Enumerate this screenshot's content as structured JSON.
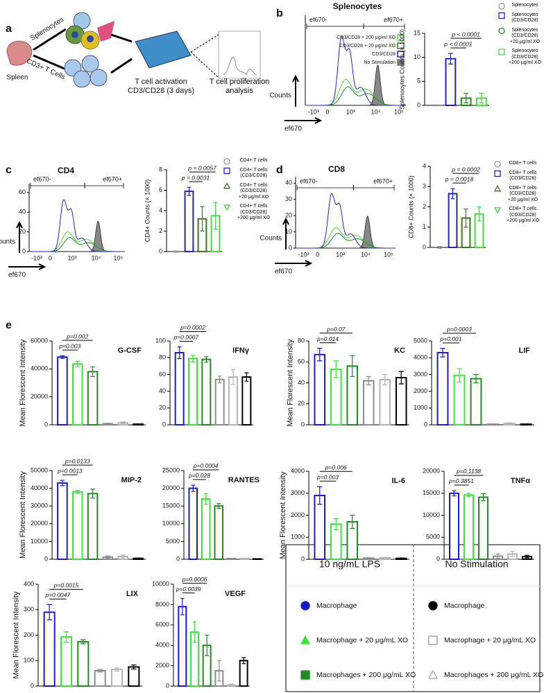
{
  "panels": [
    "a",
    "b",
    "c",
    "d",
    "e"
  ],
  "diagram": {
    "spleen": "Spleen",
    "splenocytes": "Splenocytes",
    "t_cells": "CD3+ T Cells",
    "activation": "T cell activation",
    "activation_detail": "CD3/CD28 (3 days)",
    "analysis": "T cell proliferation\nanalysis"
  },
  "histograms": [
    {
      "title": "Splenocytes",
      "gates": [
        "ef670-",
        "ef670+"
      ],
      "y_label": "Counts",
      "x_label": "ef670",
      "xtick_labels": [
        "-10³",
        "0",
        "10³",
        "10⁴",
        "10⁵"
      ],
      "legend": [
        {
          "name": "CD3/CD28 + 200 μg/ml XO",
          "color": "#44dd44",
          "filled": false
        },
        {
          "name": "CD3/CD28 + 20 μg/ml XO",
          "color": "#1e8c1e",
          "filled": false
        },
        {
          "name": "CD3/CD28",
          "color": "#2222cc",
          "filled": false
        },
        {
          "name": "No Stimulation",
          "color": "#777777",
          "filled": true
        }
      ]
    },
    {
      "title": "CD4",
      "gates": [
        "ef670-",
        "ef670+"
      ],
      "y_label": "Counts",
      "x_label": "ef670",
      "xtick_labels": [
        "-10³",
        "0",
        "10³",
        "10⁴",
        "10⁵"
      ],
      "ylim": [
        0,
        69
      ],
      "yticks": [
        0,
        20,
        40,
        60
      ]
    },
    {
      "title": "CD8",
      "gates": [
        "ef670-",
        "ef670+"
      ],
      "y_label": "Counts",
      "x_label": "ef670",
      "xtick_labels": [
        "-10³",
        "0",
        "10³",
        "10⁴",
        "10⁵"
      ],
      "ylim": [
        0,
        44
      ],
      "yticks": [
        0,
        10,
        20,
        30,
        40
      ]
    }
  ],
  "chart_data": [
    {
      "type": "bar",
      "y_label": "Splenocytes Counts (× 1000)",
      "categories": [
        null,
        null,
        null,
        null
      ],
      "values": [
        0,
        9.7,
        1.5,
        1.5
      ],
      "errors": [
        0.1,
        1.1,
        1.0,
        1.0
      ],
      "colors": [
        "#999999",
        "#2222cc",
        "#1e8c1e",
        "#44dd44"
      ],
      "ylim": [
        0,
        15
      ],
      "yticks": [
        0,
        5,
        10,
        15
      ],
      "annotations": [
        "p < 0.0001",
        "p < 0.0001"
      ],
      "legend": [
        "Splenocytes",
        "Splenocytes\n(CD3/CD28)",
        "Splenocytes\n(CD3/CD28)\n+20 μg/ml XO",
        "Splenocytes\n(CD3/CD28)\n+200 μg/ml XO"
      ],
      "markers": [
        "circle",
        "square",
        "circle",
        "square"
      ]
    },
    {
      "type": "bar",
      "y_label": "CD4+ Counts (× 1000)",
      "categories": [
        null,
        null,
        null,
        null
      ],
      "values": [
        0,
        5.9,
        3.2,
        3.5
      ],
      "errors": [
        0.05,
        0.4,
        1.2,
        1.3
      ],
      "colors": [
        "#999999",
        "#2222cc",
        "#3a7a1a",
        "#44dd44"
      ],
      "ylim": [
        0,
        8
      ],
      "yticks": [
        0,
        2,
        4,
        6,
        8
      ],
      "annotations": [
        "p = 0.0031",
        "p = 0.0057"
      ],
      "legend": [
        "CD4+ T cells",
        "CD4+ T cells\n(CD3/CD28)",
        "CD4+ T cells\n(CD3/CD28)\n+20 μg/ml XO",
        "CD4+ T cells\n(CD3/CD28)\n+200 μg/ml XO"
      ],
      "markers": [
        "circle",
        "square",
        "triangle",
        "triangle-down"
      ]
    },
    {
      "type": "bar",
      "y_label": "CD8+ Counts (× 1000)",
      "categories": [
        null,
        null,
        null,
        null
      ],
      "values": [
        0,
        2.65,
        1.45,
        1.65
      ],
      "errors": [
        0.05,
        0.25,
        0.45,
        0.35
      ],
      "colors": [
        "#999999",
        "#2222cc",
        "#3a7a1a",
        "#44dd44"
      ],
      "ylim": [
        0,
        4
      ],
      "yticks": [
        0,
        1,
        2,
        3,
        4
      ],
      "annotations": [
        "p = 0.0018",
        "p = 0.0002"
      ],
      "legend": [
        "CD8+ T cells",
        "CD8+ T cells\n(CD3/CD28)",
        "CD8+ T cells\n(CD3/CD28)\n+20 μg/ml XO",
        "CD8+ T cells\n(CD3/CD28)\n+200 μg/ml XO"
      ],
      "markers": [
        "circle",
        "square",
        "triangle",
        "triangle-down"
      ]
    },
    {
      "type": "bar",
      "title": "G-CSF",
      "y_label": "Mean Florescent Intensity",
      "categories": [
        null,
        null,
        null,
        null,
        null,
        null
      ],
      "values": [
        48500,
        43500,
        38000,
        800,
        1500,
        500
      ],
      "errors": [
        1000,
        2000,
        3500,
        300,
        700,
        200
      ],
      "colors": [
        "#1a1acd",
        "#39e639",
        "#1e8c1e",
        "#8c8c8c",
        "#b4b4b4",
        "#000000"
      ],
      "ylim": [
        0,
        60000
      ],
      "yticks": [
        0,
        20000,
        40000,
        60000
      ],
      "annotations": [
        "p=0.003",
        "p=0.002"
      ]
    },
    {
      "type": "bar",
      "title": "IFNγ",
      "categories": [
        null,
        null,
        null,
        null,
        null,
        null
      ],
      "values": [
        86,
        79,
        78,
        54,
        57,
        57
      ],
      "errors": [
        7,
        4,
        3,
        4,
        9,
        5
      ],
      "colors": [
        "#1a1acd",
        "#39e639",
        "#1e8c1e",
        "#8c8c8c",
        "#b4b4b4",
        "#000000"
      ],
      "ylim": [
        0,
        100
      ],
      "yticks": [
        0,
        20,
        40,
        60,
        80,
        100
      ],
      "annotations": [
        "p=0.0007",
        "p=0.0002"
      ]
    },
    {
      "type": "bar",
      "title": "KC",
      "y_label": "Mean Florescent Intensity",
      "categories": [
        null,
        null,
        null,
        null,
        null,
        null
      ],
      "values": [
        67,
        53,
        56,
        42,
        43,
        45
      ],
      "errors": [
        6,
        8,
        10,
        4,
        5,
        6
      ],
      "colors": [
        "#1a1acd",
        "#39e639",
        "#1e8c1e",
        "#8c8c8c",
        "#b4b4b4",
        "#000000"
      ],
      "ylim": [
        0,
        80
      ],
      "yticks": [
        0,
        20,
        40,
        60,
        80
      ],
      "annotations": [
        "p=0.014",
        "p=0.07"
      ]
    },
    {
      "type": "bar",
      "title": "LIF",
      "categories": [
        null,
        null,
        null,
        null,
        null,
        null
      ],
      "values": [
        4300,
        2950,
        2750,
        40,
        80,
        40
      ],
      "errors": [
        250,
        400,
        250,
        20,
        40,
        20
      ],
      "colors": [
        "#1a1acd",
        "#39e639",
        "#1e8c1e",
        "#8c8c8c",
        "#b4b4b4",
        "#000000"
      ],
      "ylim": [
        0,
        5000
      ],
      "yticks": [
        0,
        1000,
        2000,
        3000,
        4000,
        5000
      ],
      "annotations": [
        "p=0.001",
        "p=0.0003"
      ]
    },
    {
      "type": "bar",
      "title": "MIP-2",
      "y_label": "Mean Florescent Intensity",
      "categories": [
        null,
        null,
        null,
        null,
        null,
        null
      ],
      "values": [
        43000,
        38000,
        37000,
        1200,
        1600,
        500
      ],
      "errors": [
        1500,
        800,
        2500,
        700,
        800,
        200
      ],
      "colors": [
        "#1a1acd",
        "#39e639",
        "#1e8c1e",
        "#8c8c8c",
        "#b4b4b4",
        "#000000"
      ],
      "ylim": [
        0,
        50000
      ],
      "yticks": [
        0,
        10000,
        20000,
        30000,
        40000,
        50000
      ],
      "annotations": [
        "p=0.0013",
        "p=0.0133"
      ]
    },
    {
      "type": "bar",
      "title": "RANTES",
      "categories": [
        null,
        null,
        null,
        null,
        null,
        null
      ],
      "values": [
        20000,
        17000,
        15000,
        200,
        200,
        100
      ],
      "errors": [
        900,
        1500,
        700,
        100,
        100,
        50
      ],
      "colors": [
        "#1a1acd",
        "#39e639",
        "#1e8c1e",
        "#8c8c8c",
        "#b4b4b4",
        "#000000"
      ],
      "ylim": [
        0,
        25000
      ],
      "yticks": [
        0,
        5000,
        10000,
        15000,
        20000,
        25000
      ],
      "annotations": [
        "p=0.028",
        "p=0.0004"
      ]
    },
    {
      "type": "bar",
      "title": "IL-6",
      "y_label": "Mean Florescent Intensity",
      "categories": [
        null,
        null,
        null,
        null,
        null,
        null
      ],
      "values": [
        2900,
        1600,
        1700,
        50,
        60,
        40
      ],
      "errors": [
        400,
        250,
        300,
        20,
        30,
        20
      ],
      "colors": [
        "#1a1acd",
        "#39e639",
        "#1e8c1e",
        "#8c8c8c",
        "#b4b4b4",
        "#000000"
      ],
      "ylim": [
        0,
        4000
      ],
      "yticks": [
        0,
        1000,
        2000,
        3000,
        4000
      ],
      "annotations": [
        "p=0.003",
        "p=0.006"
      ]
    },
    {
      "type": "bar",
      "title": "TNFα",
      "categories": [
        null,
        null,
        null,
        null,
        null,
        null
      ],
      "values": [
        15000,
        14600,
        14100,
        700,
        1200,
        600
      ],
      "errors": [
        600,
        400,
        800,
        500,
        600,
        300
      ],
      "colors": [
        "#1a1acd",
        "#39e639",
        "#1e8c1e",
        "#8c8c8c",
        "#b4b4b4",
        "#000000"
      ],
      "ylim": [
        0,
        20000
      ],
      "yticks": [
        0,
        5000,
        10000,
        15000,
        20000
      ],
      "annotations": [
        "p=0.3851",
        "p=0.1138"
      ]
    },
    {
      "type": "bar",
      "title": "LIX",
      "y_label": "Mean Florescent Intensity",
      "categories": [
        null,
        null,
        null,
        null,
        null,
        null
      ],
      "values": [
        290,
        193,
        174,
        60,
        65,
        75
      ],
      "errors": [
        30,
        20,
        8,
        5,
        6,
        8
      ],
      "colors": [
        "#1a1acd",
        "#39e639",
        "#1e8c1e",
        "#8c8c8c",
        "#b4b4b4",
        "#000000"
      ],
      "ylim": [
        0,
        400
      ],
      "yticks": [
        0,
        100,
        200,
        300,
        400
      ],
      "annotations": [
        "p=0.0047",
        "p=0.0015"
      ]
    },
    {
      "type": "bar",
      "title": "VEGF",
      "categories": [
        null,
        null,
        null,
        null,
        null,
        null
      ],
      "values": [
        7800,
        5300,
        4000,
        1500,
        100,
        2500
      ],
      "errors": [
        800,
        1000,
        1000,
        1000,
        100,
        300
      ],
      "colors": [
        "#1a1acd",
        "#39e639",
        "#1e8c1e",
        "#8c8c8c",
        "#b4b4b4",
        "#000000"
      ],
      "ylim": [
        0,
        10000
      ],
      "yticks": [
        0,
        2000,
        4000,
        6000,
        8000,
        10000
      ],
      "annotations": [
        "p=0.0039",
        "p=0.0006"
      ]
    }
  ],
  "legend_e": {
    "groups": [
      {
        "title": "10 ng/mL LPS",
        "entries": [
          {
            "name": "Macrophage",
            "color": "#1a1acd",
            "marker": "circle",
            "filled": true
          },
          {
            "name": "Macrophage + 20 μg/mL XO",
            "color": "#39e639",
            "marker": "triangle",
            "filled": true
          },
          {
            "name": "Macrophages + 200 μg/mL XO",
            "color": "#1e8c1e",
            "marker": "square",
            "filled": true
          }
        ]
      },
      {
        "title": "No Stimulation",
        "entries": [
          {
            "name": "Macrophage",
            "color": "#000000",
            "marker": "circle",
            "filled": true
          },
          {
            "name": "Macrophage + 20 μg/mL XO",
            "color": "#999999",
            "marker": "square",
            "filled": false
          },
          {
            "name": "Macrophages + 200 μg/mL XO",
            "color": "#aaaaaa",
            "marker": "triangle",
            "filled": false
          }
        ]
      }
    ]
  }
}
